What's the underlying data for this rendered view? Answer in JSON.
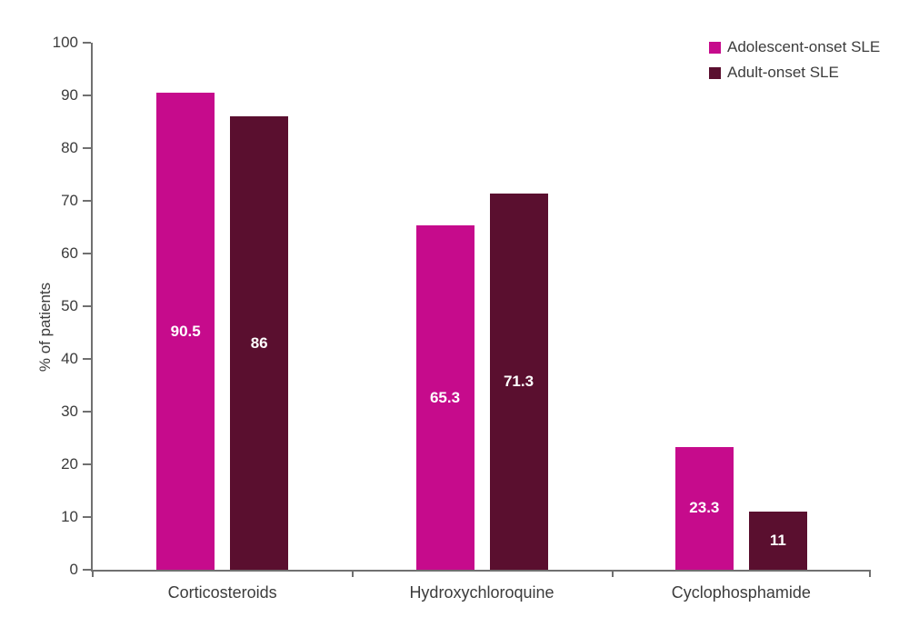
{
  "chart_data": {
    "type": "bar",
    "title": "",
    "xlabel": "",
    "ylabel": "% of patients",
    "ylim": [
      0,
      100
    ],
    "yticks": [
      0,
      10,
      20,
      30,
      40,
      50,
      60,
      70,
      80,
      90,
      100
    ],
    "grid": false,
    "legend_position": "top-right",
    "categories": [
      "Corticosteroids",
      "Hydroxychloroquine",
      "Cyclophosphamide"
    ],
    "series": [
      {
        "name": "Adolescent-onset SLE",
        "color": "#c60b8c",
        "values": [
          90.5,
          65.3,
          23.3
        ],
        "labels": [
          "90.5",
          "65.3",
          "23.3"
        ]
      },
      {
        "name": "Adult-onset SLE",
        "color": "#5a0f2f",
        "values": [
          86,
          71.3,
          11
        ],
        "labels": [
          "86",
          "71.3",
          "11"
        ]
      }
    ]
  },
  "colors": {
    "background": "#ffffff",
    "axis": "#707070",
    "tick_text": "#3c3c3c",
    "bar_value_text": "#ffffff"
  }
}
